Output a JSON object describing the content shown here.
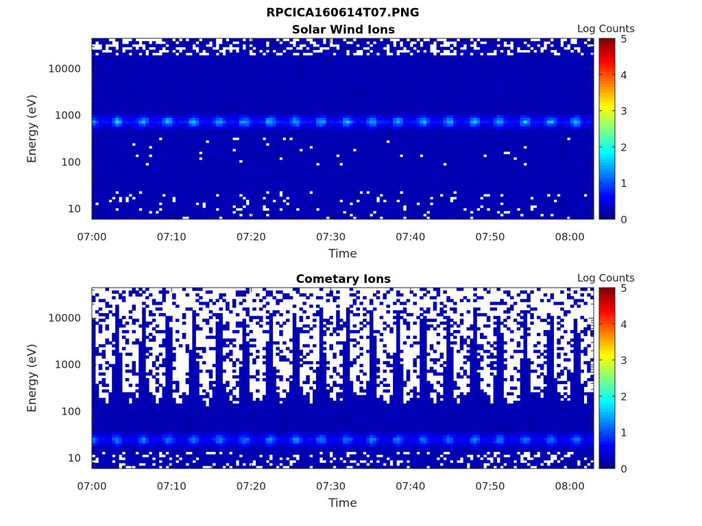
{
  "figure_title": "RPCICA160614T07.PNG",
  "chart_data": [
    {
      "type": "heatmap",
      "title": "Solar Wind Ions",
      "xlabel": "Time",
      "ylabel": "Energy (eV)",
      "x_ticks": [
        "07:00",
        "07:10",
        "07:20",
        "07:30",
        "07:40",
        "07:50",
        "08:00"
      ],
      "xlim": [
        "07:00",
        "08:03"
      ],
      "y_scale": "log",
      "y_ticks": [
        10,
        100,
        1000,
        10000
      ],
      "ylim": [
        6,
        45000
      ],
      "colorbar": {
        "label": "Log Counts",
        "range": [
          0,
          5
        ],
        "ticks": [
          0,
          1,
          2,
          3,
          4,
          5
        ],
        "colormap": "jet"
      },
      "description_values": {
        "background_level": 0.2,
        "peak_energy_eV": 750,
        "peak_level": 1.6,
        "peak_period_min": 3.2
      }
    },
    {
      "type": "heatmap",
      "title": "Cometary Ions",
      "xlabel": "Time",
      "ylabel": "Energy (eV)",
      "x_ticks": [
        "07:00",
        "07:10",
        "07:20",
        "07:30",
        "07:40",
        "07:50",
        "08:00"
      ],
      "xlim": [
        "07:00",
        "08:03"
      ],
      "y_scale": "log",
      "y_ticks": [
        10,
        100,
        1000,
        10000
      ],
      "ylim": [
        6,
        45000
      ],
      "colorbar": {
        "label": "Log Counts",
        "range": [
          0,
          5
        ],
        "ticks": [
          0,
          1,
          2,
          3,
          4,
          5
        ],
        "colormap": "jet"
      },
      "description_values": {
        "background_level": 0.2,
        "peak_energy_eV": 25,
        "peak_level": 1.3,
        "peak_period_min": 3.2
      }
    }
  ],
  "colors": {
    "empty": "#ffffff",
    "low": "#00008f",
    "axis": "#262626"
  }
}
